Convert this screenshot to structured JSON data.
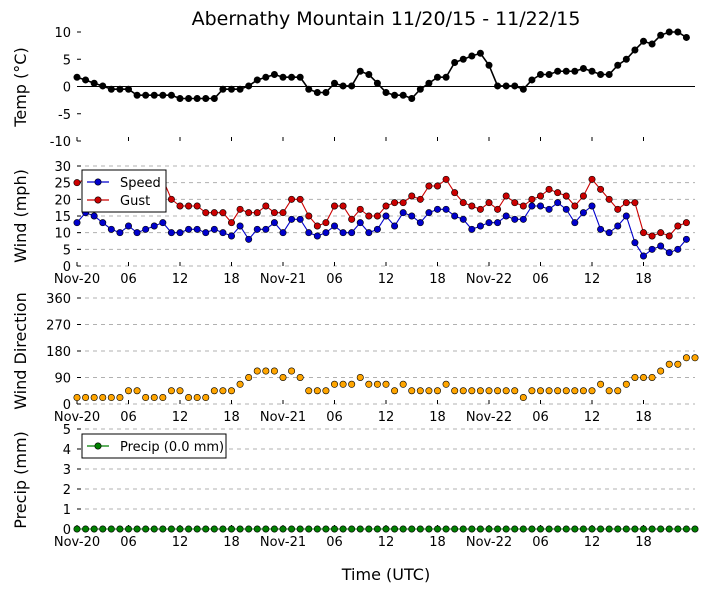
{
  "chart_data": {
    "title": "Abernathy Mountain 11/20/15 - 11/22/15",
    "xlabel": "Time (UTC)",
    "x_tick_labels": [
      "Nov-20",
      "06",
      "12",
      "18",
      "Nov-21",
      "06",
      "12",
      "18",
      "Nov-22",
      "06",
      "12",
      "18"
    ],
    "x_range_hours": [
      0,
      72
    ],
    "panels": [
      {
        "id": "temp",
        "type": "line",
        "ylabel": "Temp (°C)",
        "ylim": [
          -10,
          10
        ],
        "yticks": [
          -10,
          -5,
          0,
          5,
          10
        ],
        "zero_line": true,
        "grid": false,
        "legend": null,
        "series": [
          {
            "name": "",
            "color": "#000000",
            "values": [
              1.7,
              1.2,
              0.6,
              0.1,
              -0.5,
              -0.5,
              -0.5,
              -1.6,
              -1.6,
              -1.6,
              -1.6,
              -1.6,
              -2.2,
              -2.2,
              -2.2,
              -2.2,
              -2.2,
              -0.5,
              -0.5,
              -0.5,
              0.1,
              1.2,
              1.7,
              2.2,
              1.7,
              1.7,
              1.7,
              -0.5,
              -1.1,
              -1.1,
              0.6,
              0.1,
              0.1,
              2.8,
              2.2,
              0.6,
              -1.1,
              -1.6,
              -1.6,
              -2.2,
              -0.5,
              0.6,
              1.7,
              1.7,
              4.4,
              5.0,
              5.6,
              6.1,
              3.9,
              0.1,
              0.1,
              0.1,
              -0.5,
              1.2,
              2.2,
              2.2,
              2.8,
              2.8,
              2.8,
              3.3,
              2.8,
              2.2,
              2.2,
              3.9,
              5.0,
              6.7,
              8.3,
              7.8,
              9.4,
              10.0,
              10.0,
              9.0
            ]
          }
        ]
      },
      {
        "id": "wind",
        "type": "line",
        "ylabel": "Wind (mph)",
        "ylim": [
          0,
          30
        ],
        "yticks": [
          0,
          5,
          10,
          15,
          20,
          25,
          30
        ],
        "grid": true,
        "legend": "top-left",
        "series": [
          {
            "name": "Speed",
            "color": "#0000cc",
            "values": [
              13,
              16,
              15,
              13,
              11,
              10,
              12,
              10,
              11,
              12,
              13,
              10,
              10,
              11,
              11,
              10,
              11,
              10,
              9,
              12,
              8,
              11,
              11,
              13,
              10,
              14,
              14,
              10,
              9,
              10,
              12,
              10,
              10,
              13,
              10,
              11,
              15,
              12,
              16,
              15,
              13,
              16,
              17,
              17,
              15,
              14,
              11,
              12,
              13,
              13,
              15,
              14,
              14,
              18,
              18,
              17,
              19,
              17,
              13,
              16,
              18,
              11,
              10,
              12,
              15,
              7,
              3,
              5,
              6,
              4,
              5,
              8
            ]
          },
          {
            "name": "Gust",
            "color": "#cc0000",
            "values": [
              25,
              26,
              23,
              25,
              24,
              26,
              25,
              22,
              23,
              23,
              26,
              20,
              18,
              18,
              18,
              16,
              16,
              16,
              13,
              17,
              16,
              16,
              18,
              16,
              16,
              20,
              20,
              15,
              12,
              13,
              18,
              18,
              14,
              17,
              15,
              15,
              18,
              19,
              19,
              21,
              20,
              24,
              24,
              26,
              22,
              19,
              18,
              17,
              19,
              17,
              21,
              19,
              18,
              20,
              21,
              23,
              22,
              21,
              18,
              21,
              26,
              23,
              20,
              17,
              19,
              19,
              10,
              9,
              10,
              9,
              12,
              13
            ]
          }
        ]
      },
      {
        "id": "dir",
        "type": "scatter",
        "ylabel": "Wind Direction",
        "ylim": [
          0,
          360
        ],
        "yticks": [
          0,
          90,
          180,
          270,
          360
        ],
        "grid": true,
        "legend": null,
        "series": [
          {
            "name": "",
            "color": "#ffa500",
            "values": [
              22,
              22,
              22,
              22,
              22,
              22,
              45,
              45,
              22,
              22,
              22,
              45,
              45,
              22,
              22,
              22,
              45,
              45,
              45,
              67,
              90,
              112,
              112,
              112,
              90,
              112,
              90,
              45,
              45,
              45,
              67,
              67,
              67,
              90,
              67,
              67,
              67,
              45,
              67,
              45,
              45,
              45,
              45,
              67,
              45,
              45,
              45,
              45,
              45,
              45,
              45,
              45,
              22,
              45,
              45,
              45,
              45,
              45,
              45,
              45,
              45,
              67,
              45,
              45,
              67,
              90,
              90,
              90,
              112,
              135,
              135,
              157,
              157
            ]
          }
        ]
      },
      {
        "id": "precip",
        "type": "line",
        "ylabel": "Precip (mm)",
        "ylim": [
          0,
          5
        ],
        "yticks": [
          0,
          1,
          2,
          3,
          4,
          5
        ],
        "grid": true,
        "legend": "top-left",
        "series": [
          {
            "name": "Precip (0.0 mm)",
            "color": "#008000",
            "values": [
              0,
              0,
              0,
              0,
              0,
              0,
              0,
              0,
              0,
              0,
              0,
              0,
              0,
              0,
              0,
              0,
              0,
              0,
              0,
              0,
              0,
              0,
              0,
              0,
              0,
              0,
              0,
              0,
              0,
              0,
              0,
              0,
              0,
              0,
              0,
              0,
              0,
              0,
              0,
              0,
              0,
              0,
              0,
              0,
              0,
              0,
              0,
              0,
              0,
              0,
              0,
              0,
              0,
              0,
              0,
              0,
              0,
              0,
              0,
              0,
              0,
              0,
              0,
              0,
              0,
              0,
              0,
              0,
              0,
              0,
              0,
              0,
              0
            ]
          }
        ]
      }
    ]
  }
}
